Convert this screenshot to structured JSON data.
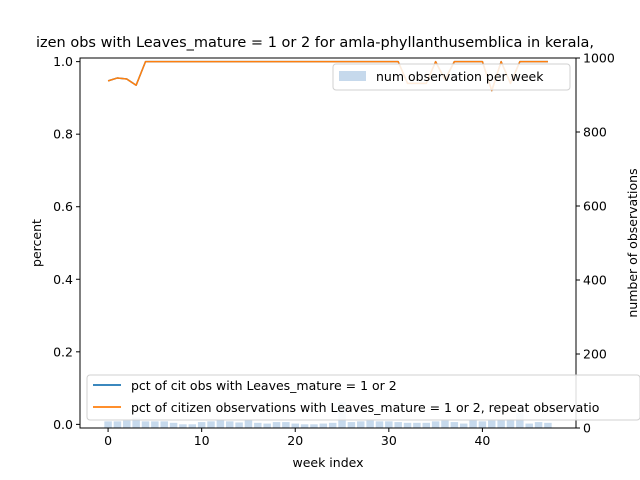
{
  "chart_data": {
    "type": "line",
    "title": "izen obs with Leaves_mature = 1 or 2 for amla-phyllanthusemblica in kerala,",
    "xlabel": "week index",
    "ylabel": "percent",
    "y2label": "number of observations",
    "xlim": [
      -3,
      50
    ],
    "ylim": [
      -0.01,
      1.01
    ],
    "y2lim": [
      0,
      1000
    ],
    "x_ticks": [
      0,
      10,
      20,
      30,
      40
    ],
    "y_ticks": [
      0.0,
      0.2,
      0.4,
      0.6,
      0.8,
      1.0
    ],
    "y2_ticks": [
      0,
      200,
      400,
      600,
      800,
      1000
    ],
    "grid": false,
    "legend_upper": {
      "placement": "top-right",
      "entries": [
        "num observation per week"
      ]
    },
    "legend_lower": {
      "placement": "bottom-left",
      "entries": [
        "pct of cit obs with Leaves_mature = 1 or 2",
        "pct of citizen observations with Leaves_mature = 1 or 2, repeat observatio"
      ]
    },
    "bars": {
      "name": "num observation per week",
      "color": "#c6d9ec",
      "x": [
        0,
        1,
        2,
        3,
        4,
        5,
        6,
        7,
        8,
        9,
        10,
        11,
        12,
        13,
        14,
        15,
        16,
        17,
        18,
        19,
        20,
        21,
        22,
        23,
        24,
        25,
        26,
        27,
        28,
        29,
        30,
        31,
        32,
        33,
        34,
        35,
        36,
        37,
        38,
        39,
        40,
        41,
        42,
        43,
        44,
        45,
        46,
        47
      ],
      "values": [
        18,
        18,
        20,
        28,
        18,
        18,
        18,
        14,
        10,
        10,
        16,
        18,
        22,
        18,
        15,
        22,
        14,
        12,
        16,
        16,
        12,
        10,
        10,
        12,
        14,
        70,
        16,
        18,
        20,
        18,
        18,
        16,
        14,
        14,
        14,
        18,
        20,
        16,
        12,
        22,
        18,
        20,
        22,
        24,
        40,
        12,
        16,
        14
      ]
    },
    "series": [
      {
        "name": "pct of cit obs with Leaves_mature = 1 or 2",
        "color": "#1f77b4",
        "x": [
          0,
          1,
          2,
          3,
          4,
          5,
          6,
          7,
          8,
          9,
          10,
          11,
          12,
          13,
          14,
          15,
          16,
          17,
          18,
          19,
          20,
          21,
          22,
          23,
          24,
          25,
          26,
          27,
          28,
          29,
          30,
          31,
          32,
          33,
          34,
          35,
          36,
          37,
          38,
          39,
          40,
          41,
          42,
          43,
          44,
          45,
          46,
          47
        ],
        "values": [
          0.947,
          0.955,
          0.952,
          0.935,
          1.0,
          1.0,
          1.0,
          1.0,
          1.0,
          1.0,
          1.0,
          1.0,
          1.0,
          1.0,
          1.0,
          1.0,
          1.0,
          1.0,
          1.0,
          1.0,
          1.0,
          1.0,
          1.0,
          1.0,
          1.0,
          1.0,
          1.0,
          1.0,
          1.0,
          1.0,
          1.0,
          1.0,
          0.94,
          0.94,
          0.94,
          1.0,
          0.95,
          1.0,
          1.0,
          1.0,
          1.0,
          0.92,
          1.0,
          0.94,
          1.0,
          1.0,
          1.0,
          1.0
        ]
      },
      {
        "name": "pct of citizen observations with Leaves_mature = 1 or 2, repeat observatio",
        "color": "#ff7f0e",
        "x": [
          0,
          1,
          2,
          3,
          4,
          5,
          6,
          7,
          8,
          9,
          10,
          11,
          12,
          13,
          14,
          15,
          16,
          17,
          18,
          19,
          20,
          21,
          22,
          23,
          24,
          25,
          26,
          27,
          28,
          29,
          30,
          31,
          32,
          33,
          34,
          35,
          36,
          37,
          38,
          39,
          40,
          41,
          42,
          43,
          44,
          45,
          46,
          47
        ],
        "values": [
          0.947,
          0.955,
          0.952,
          0.935,
          1.0,
          1.0,
          1.0,
          1.0,
          1.0,
          1.0,
          1.0,
          1.0,
          1.0,
          1.0,
          1.0,
          1.0,
          1.0,
          1.0,
          1.0,
          1.0,
          1.0,
          1.0,
          1.0,
          1.0,
          1.0,
          1.0,
          1.0,
          1.0,
          1.0,
          1.0,
          1.0,
          1.0,
          0.94,
          0.94,
          0.94,
          1.0,
          0.95,
          1.0,
          1.0,
          1.0,
          1.0,
          0.92,
          1.0,
          0.94,
          1.0,
          1.0,
          1.0,
          1.0
        ]
      }
    ]
  }
}
